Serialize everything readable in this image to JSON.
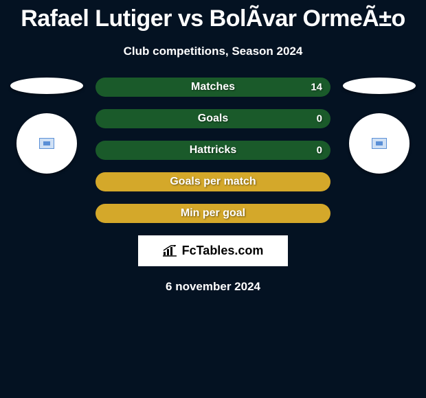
{
  "title": "Rafael Lutiger vs BolÃvar OrmeÃ±o",
  "subtitle": "Club competitions, Season 2024",
  "date": "6 november 2024",
  "colors": {
    "background": "#041222",
    "row_base": "#1a5a2a",
    "row_fill_alt": "#d4a82a",
    "text": "#ffffff",
    "white": "#ffffff",
    "black": "#000000",
    "logo_left_border": "#5a8fd6",
    "logo_left_fill": "#cfe0f5",
    "logo_right_border": "#5a8fd6",
    "logo_right_fill": "#cfe0f5"
  },
  "stats": [
    {
      "label": "Matches",
      "left_value": "",
      "right_value": "14",
      "left_pct": 0,
      "right_pct": 100,
      "base_color": "#1a5a2a",
      "right_color": "#1a5a2a"
    },
    {
      "label": "Goals",
      "left_value": "",
      "right_value": "0",
      "left_pct": 0,
      "right_pct": 100,
      "base_color": "#1a5a2a",
      "right_color": "#1a5a2a"
    },
    {
      "label": "Hattricks",
      "left_value": "",
      "right_value": "0",
      "left_pct": 0,
      "right_pct": 100,
      "base_color": "#1a5a2a",
      "right_color": "#1a5a2a"
    },
    {
      "label": "Goals per match",
      "left_value": "",
      "right_value": "",
      "left_pct": 0,
      "right_pct": 0,
      "base_color": "#d4a82a",
      "right_color": "#d4a82a"
    },
    {
      "label": "Min per goal",
      "left_value": "",
      "right_value": "",
      "left_pct": 0,
      "right_pct": 0,
      "base_color": "#d4a82a",
      "right_color": "#d4a82a"
    }
  ],
  "fctables_label": "FcTables.com"
}
